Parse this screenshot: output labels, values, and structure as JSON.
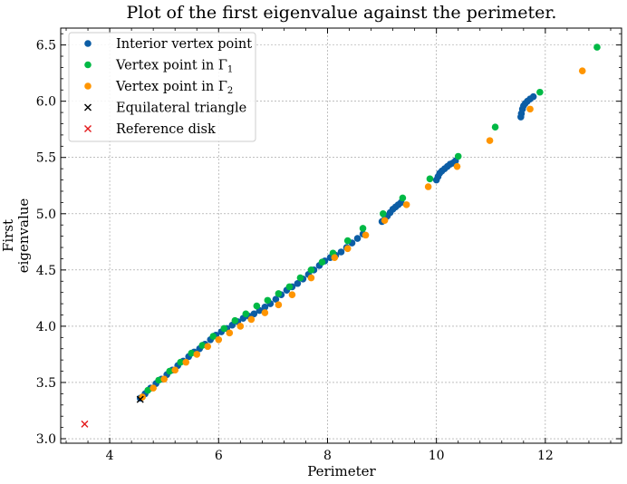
{
  "chart_data": {
    "type": "scatter",
    "title": "Plot of the first eigenvalue against the perimeter.",
    "xlabel": "Perimeter",
    "ylabel": [
      "First",
      "eigenvalue"
    ],
    "xlim": [
      3.1,
      13.4
    ],
    "ylim": [
      2.96,
      6.65
    ],
    "xticks": [
      4,
      6,
      8,
      10,
      12
    ],
    "yticks": [
      3.0,
      3.5,
      4.0,
      4.5,
      5.0,
      5.5,
      6.0,
      6.5
    ],
    "grid": true,
    "legend_position": "top-left",
    "series": [
      {
        "name": "Interior vertex point",
        "marker": "circle",
        "color": "#0C5DA5",
        "points": [
          [
            4.56,
            3.36
          ],
          [
            4.65,
            3.4
          ],
          [
            4.75,
            3.45
          ],
          [
            4.85,
            3.49
          ],
          [
            4.95,
            3.53
          ],
          [
            5.05,
            3.57
          ],
          [
            5.15,
            3.61
          ],
          [
            5.25,
            3.65
          ],
          [
            5.35,
            3.69
          ],
          [
            5.45,
            3.73
          ],
          [
            5.55,
            3.77
          ],
          [
            5.65,
            3.8
          ],
          [
            5.75,
            3.84
          ],
          [
            5.85,
            3.88
          ],
          [
            5.95,
            3.92
          ],
          [
            6.05,
            3.95
          ],
          [
            6.15,
            3.98
          ],
          [
            6.25,
            4.01
          ],
          [
            6.35,
            4.04
          ],
          [
            6.45,
            4.07
          ],
          [
            6.55,
            4.09
          ],
          [
            6.65,
            4.11
          ],
          [
            6.75,
            4.14
          ],
          [
            6.85,
            4.17
          ],
          [
            6.95,
            4.2
          ],
          [
            7.05,
            4.24
          ],
          [
            7.15,
            4.28
          ],
          [
            7.25,
            4.32
          ],
          [
            7.35,
            4.35
          ],
          [
            7.45,
            4.38
          ],
          [
            7.55,
            4.42
          ],
          [
            7.65,
            4.46
          ],
          [
            7.75,
            4.5
          ],
          [
            7.85,
            4.54
          ],
          [
            7.95,
            4.58
          ],
          [
            8.05,
            4.61
          ],
          [
            8.15,
            4.63
          ],
          [
            8.25,
            4.66
          ],
          [
            8.35,
            4.7
          ],
          [
            8.45,
            4.74
          ],
          [
            8.55,
            4.78
          ],
          [
            8.65,
            4.82
          ],
          [
            9.0,
            4.93
          ],
          [
            9.05,
            4.95
          ],
          [
            9.1,
            4.98
          ],
          [
            9.15,
            5.01
          ],
          [
            9.2,
            5.04
          ],
          [
            9.25,
            5.06
          ],
          [
            9.3,
            5.08
          ],
          [
            9.35,
            5.1
          ],
          [
            10.0,
            5.3
          ],
          [
            10.03,
            5.33
          ],
          [
            10.06,
            5.36
          ],
          [
            10.1,
            5.38
          ],
          [
            10.15,
            5.4
          ],
          [
            10.2,
            5.42
          ],
          [
            10.25,
            5.44
          ],
          [
            10.3,
            5.45
          ],
          [
            10.35,
            5.47
          ],
          [
            11.55,
            5.86
          ],
          [
            11.56,
            5.89
          ],
          [
            11.58,
            5.93
          ],
          [
            11.6,
            5.96
          ],
          [
            11.63,
            5.98
          ],
          [
            11.67,
            6.0
          ],
          [
            11.72,
            6.02
          ],
          [
            11.78,
            6.04
          ]
        ]
      },
      {
        "name": "Vertex point in Γ1",
        "marker": "circle",
        "color": "#00B945",
        "points": [
          [
            4.7,
            3.43
          ],
          [
            4.9,
            3.52
          ],
          [
            5.1,
            3.6
          ],
          [
            5.3,
            3.68
          ],
          [
            5.5,
            3.76
          ],
          [
            5.7,
            3.83
          ],
          [
            5.9,
            3.91
          ],
          [
            6.1,
            3.98
          ],
          [
            6.3,
            4.05
          ],
          [
            6.5,
            4.11
          ],
          [
            6.7,
            4.18
          ],
          [
            6.9,
            4.23
          ],
          [
            7.1,
            4.29
          ],
          [
            7.3,
            4.35
          ],
          [
            7.5,
            4.43
          ],
          [
            7.7,
            4.5
          ],
          [
            7.9,
            4.57
          ],
          [
            8.1,
            4.65
          ],
          [
            8.37,
            4.76
          ],
          [
            8.65,
            4.87
          ],
          [
            9.02,
            5.0
          ],
          [
            9.38,
            5.14
          ],
          [
            9.88,
            5.31
          ],
          [
            10.4,
            5.51
          ],
          [
            11.08,
            5.77
          ],
          [
            11.9,
            6.08
          ],
          [
            12.95,
            6.48
          ]
        ]
      },
      {
        "name": "Vertex point in Γ2",
        "marker": "circle",
        "color": "#FF9500",
        "points": [
          [
            4.6,
            3.37
          ],
          [
            4.8,
            3.45
          ],
          [
            5.0,
            3.53
          ],
          [
            5.2,
            3.61
          ],
          [
            5.4,
            3.68
          ],
          [
            5.6,
            3.75
          ],
          [
            5.8,
            3.82
          ],
          [
            6.0,
            3.88
          ],
          [
            6.2,
            3.94
          ],
          [
            6.4,
            4.0
          ],
          [
            6.6,
            4.06
          ],
          [
            6.85,
            4.12
          ],
          [
            7.1,
            4.19
          ],
          [
            7.35,
            4.28
          ],
          [
            7.7,
            4.43
          ],
          [
            8.13,
            4.61
          ],
          [
            8.37,
            4.69
          ],
          [
            8.7,
            4.81
          ],
          [
            9.05,
            4.94
          ],
          [
            9.45,
            5.08
          ],
          [
            9.85,
            5.24
          ],
          [
            10.38,
            5.42
          ],
          [
            10.98,
            5.65
          ],
          [
            11.72,
            5.93
          ],
          [
            12.68,
            6.27
          ]
        ]
      },
      {
        "name": "Equilateral triangle",
        "marker": "x",
        "color": "#000000",
        "points": [
          [
            4.56,
            3.35
          ]
        ]
      },
      {
        "name": "Reference disk",
        "marker": "x",
        "color": "#E41A1C",
        "points": [
          [
            3.54,
            3.13
          ]
        ]
      }
    ]
  }
}
